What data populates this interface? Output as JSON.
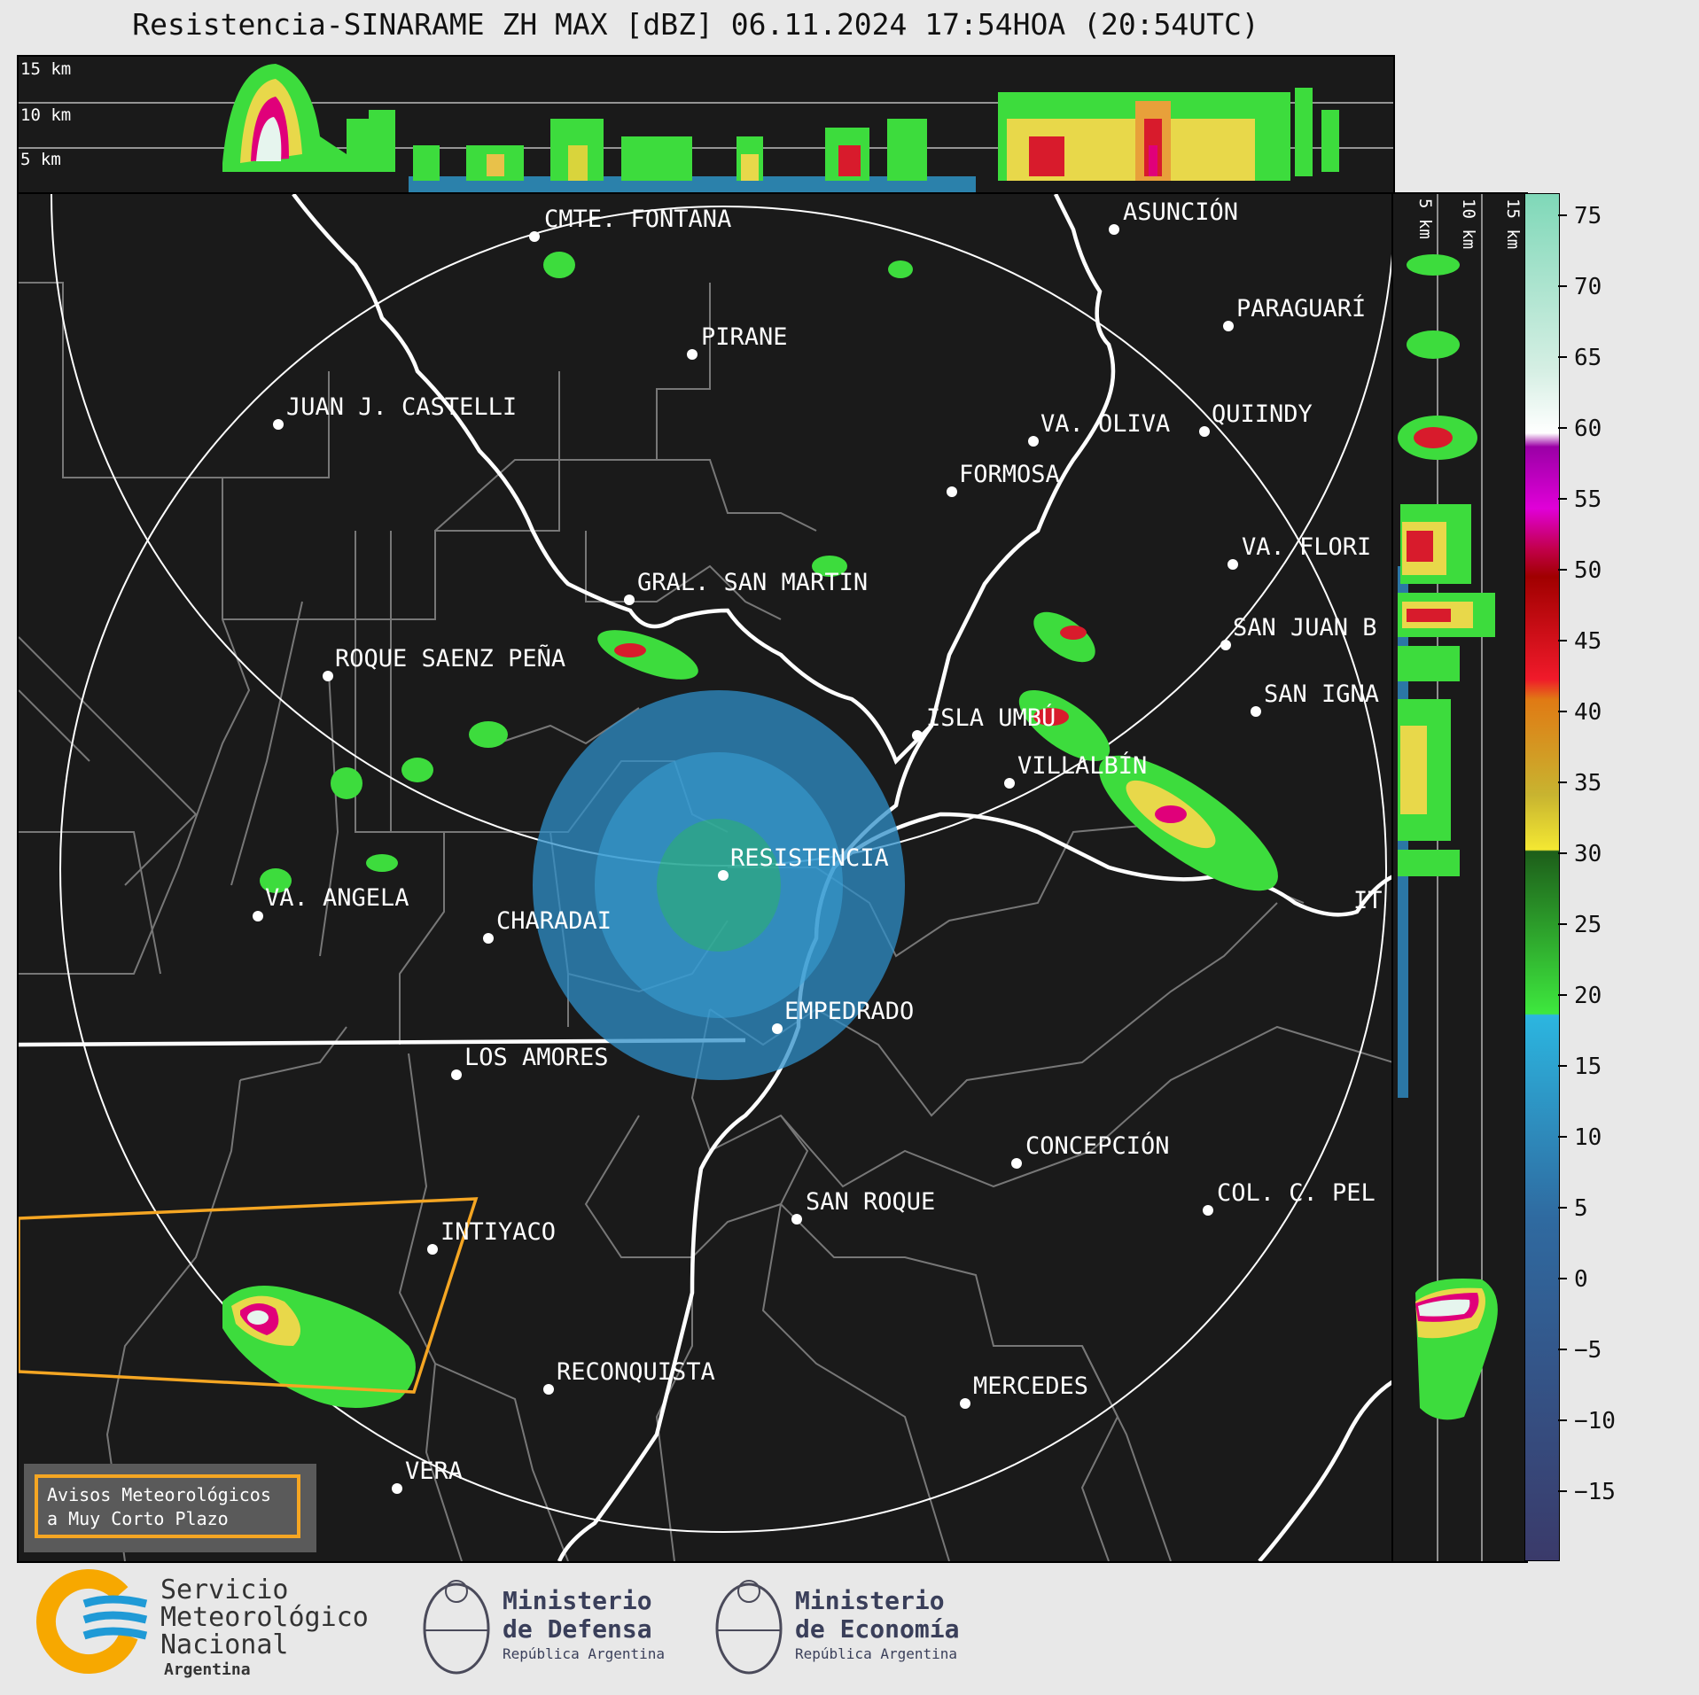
{
  "title": "Resistencia-SINARAME ZH MAX [dBZ] 06.11.2024 17:54HOA (20:54UTC)",
  "height_labels": [
    "15 km",
    "10 km",
    "5 km"
  ],
  "side_labels": [
    "5 km",
    "10 km",
    "15 km"
  ],
  "colorbar": {
    "ticks": [
      "75",
      "70",
      "65",
      "60",
      "55",
      "50",
      "45",
      "40",
      "35",
      "30",
      "25",
      "20",
      "15",
      "10",
      "5",
      "0",
      "−5",
      "−10",
      "−15"
    ]
  },
  "cities": [
    {
      "name": "CMTE. FONTANA"
    },
    {
      "name": "ASUNCIÓN"
    },
    {
      "name": "PIRANE"
    },
    {
      "name": "PARAGUARÍ"
    },
    {
      "name": "JUAN J. CASTELLI"
    },
    {
      "name": "VA. OLIVA"
    },
    {
      "name": "QUIINDY"
    },
    {
      "name": "FORMOSA"
    },
    {
      "name": "VA. FLORI"
    },
    {
      "name": "GRAL. SAN MARTIN"
    },
    {
      "name": "SAN JUAN B"
    },
    {
      "name": "ROQUE SAENZ PEÑA"
    },
    {
      "name": "SAN IGNA"
    },
    {
      "name": "ISLA UMBÚ"
    },
    {
      "name": "VILLALBÍN"
    },
    {
      "name": "RESISTENCIA"
    },
    {
      "name": "VA. ANGELA"
    },
    {
      "name": "CHARADAI"
    },
    {
      "name": "IT"
    },
    {
      "name": "EMPEDRADO"
    },
    {
      "name": "LOS AMORES"
    },
    {
      "name": "CONCEPCIÓN"
    },
    {
      "name": "SAN ROQUE"
    },
    {
      "name": "COL. C. PEL"
    },
    {
      "name": "INTIYACO"
    },
    {
      "name": "RECONQUISTA"
    },
    {
      "name": "MERCEDES"
    },
    {
      "name": "VERA"
    }
  ],
  "warning_box": {
    "line1": "Avisos Meteorológicos",
    "line2": "a Muy Corto Plazo"
  },
  "footer": {
    "smn": {
      "line1": "Servicio",
      "line2": "Meteorológico",
      "line3": "Nacional",
      "line4": "Argentina"
    },
    "defensa": {
      "line1": "Ministerio",
      "line2": "de Defensa",
      "line3": "República Argentina"
    },
    "economia": {
      "line1": "Ministerio",
      "line2": "de Economía",
      "line3": "República Argentina"
    }
  },
  "colors": {
    "background": "#1a1a1a",
    "border_white": "#ffffff",
    "warning_polygon": "#f5a623",
    "smn_orange": "#f7a800",
    "smn_blue": "#1f9ad6"
  }
}
